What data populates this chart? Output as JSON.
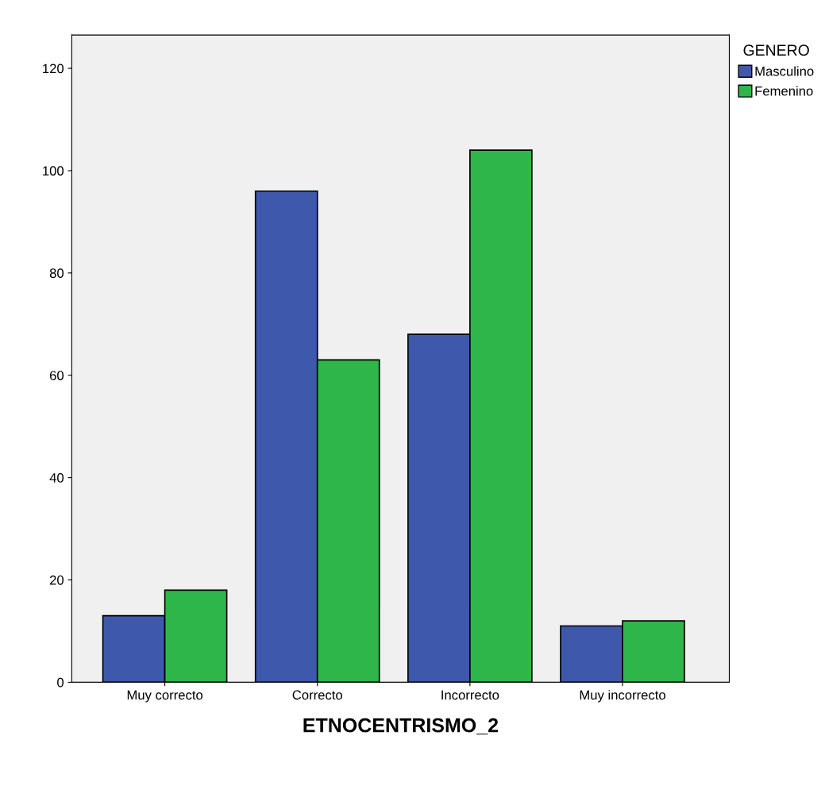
{
  "chart_data": {
    "type": "bar",
    "xlabel": "ETNOCENTRISMO_2",
    "categories": [
      "Muy correcto",
      "Correcto",
      "Incorrecto",
      "Muy incorrecto"
    ],
    "series": [
      {
        "name": "Masculino",
        "color": "#3e58ac",
        "values": [
          13,
          96,
          68,
          11
        ]
      },
      {
        "name": "Femenino",
        "color": "#2eb64a",
        "values": [
          18,
          63,
          104,
          12
        ]
      }
    ],
    "legend_title": "GENERO",
    "legend": "top right",
    "ylim": [
      0,
      126.5
    ],
    "yticks": [
      0,
      20,
      40,
      60,
      80,
      100,
      120
    ],
    "grid": false
  }
}
